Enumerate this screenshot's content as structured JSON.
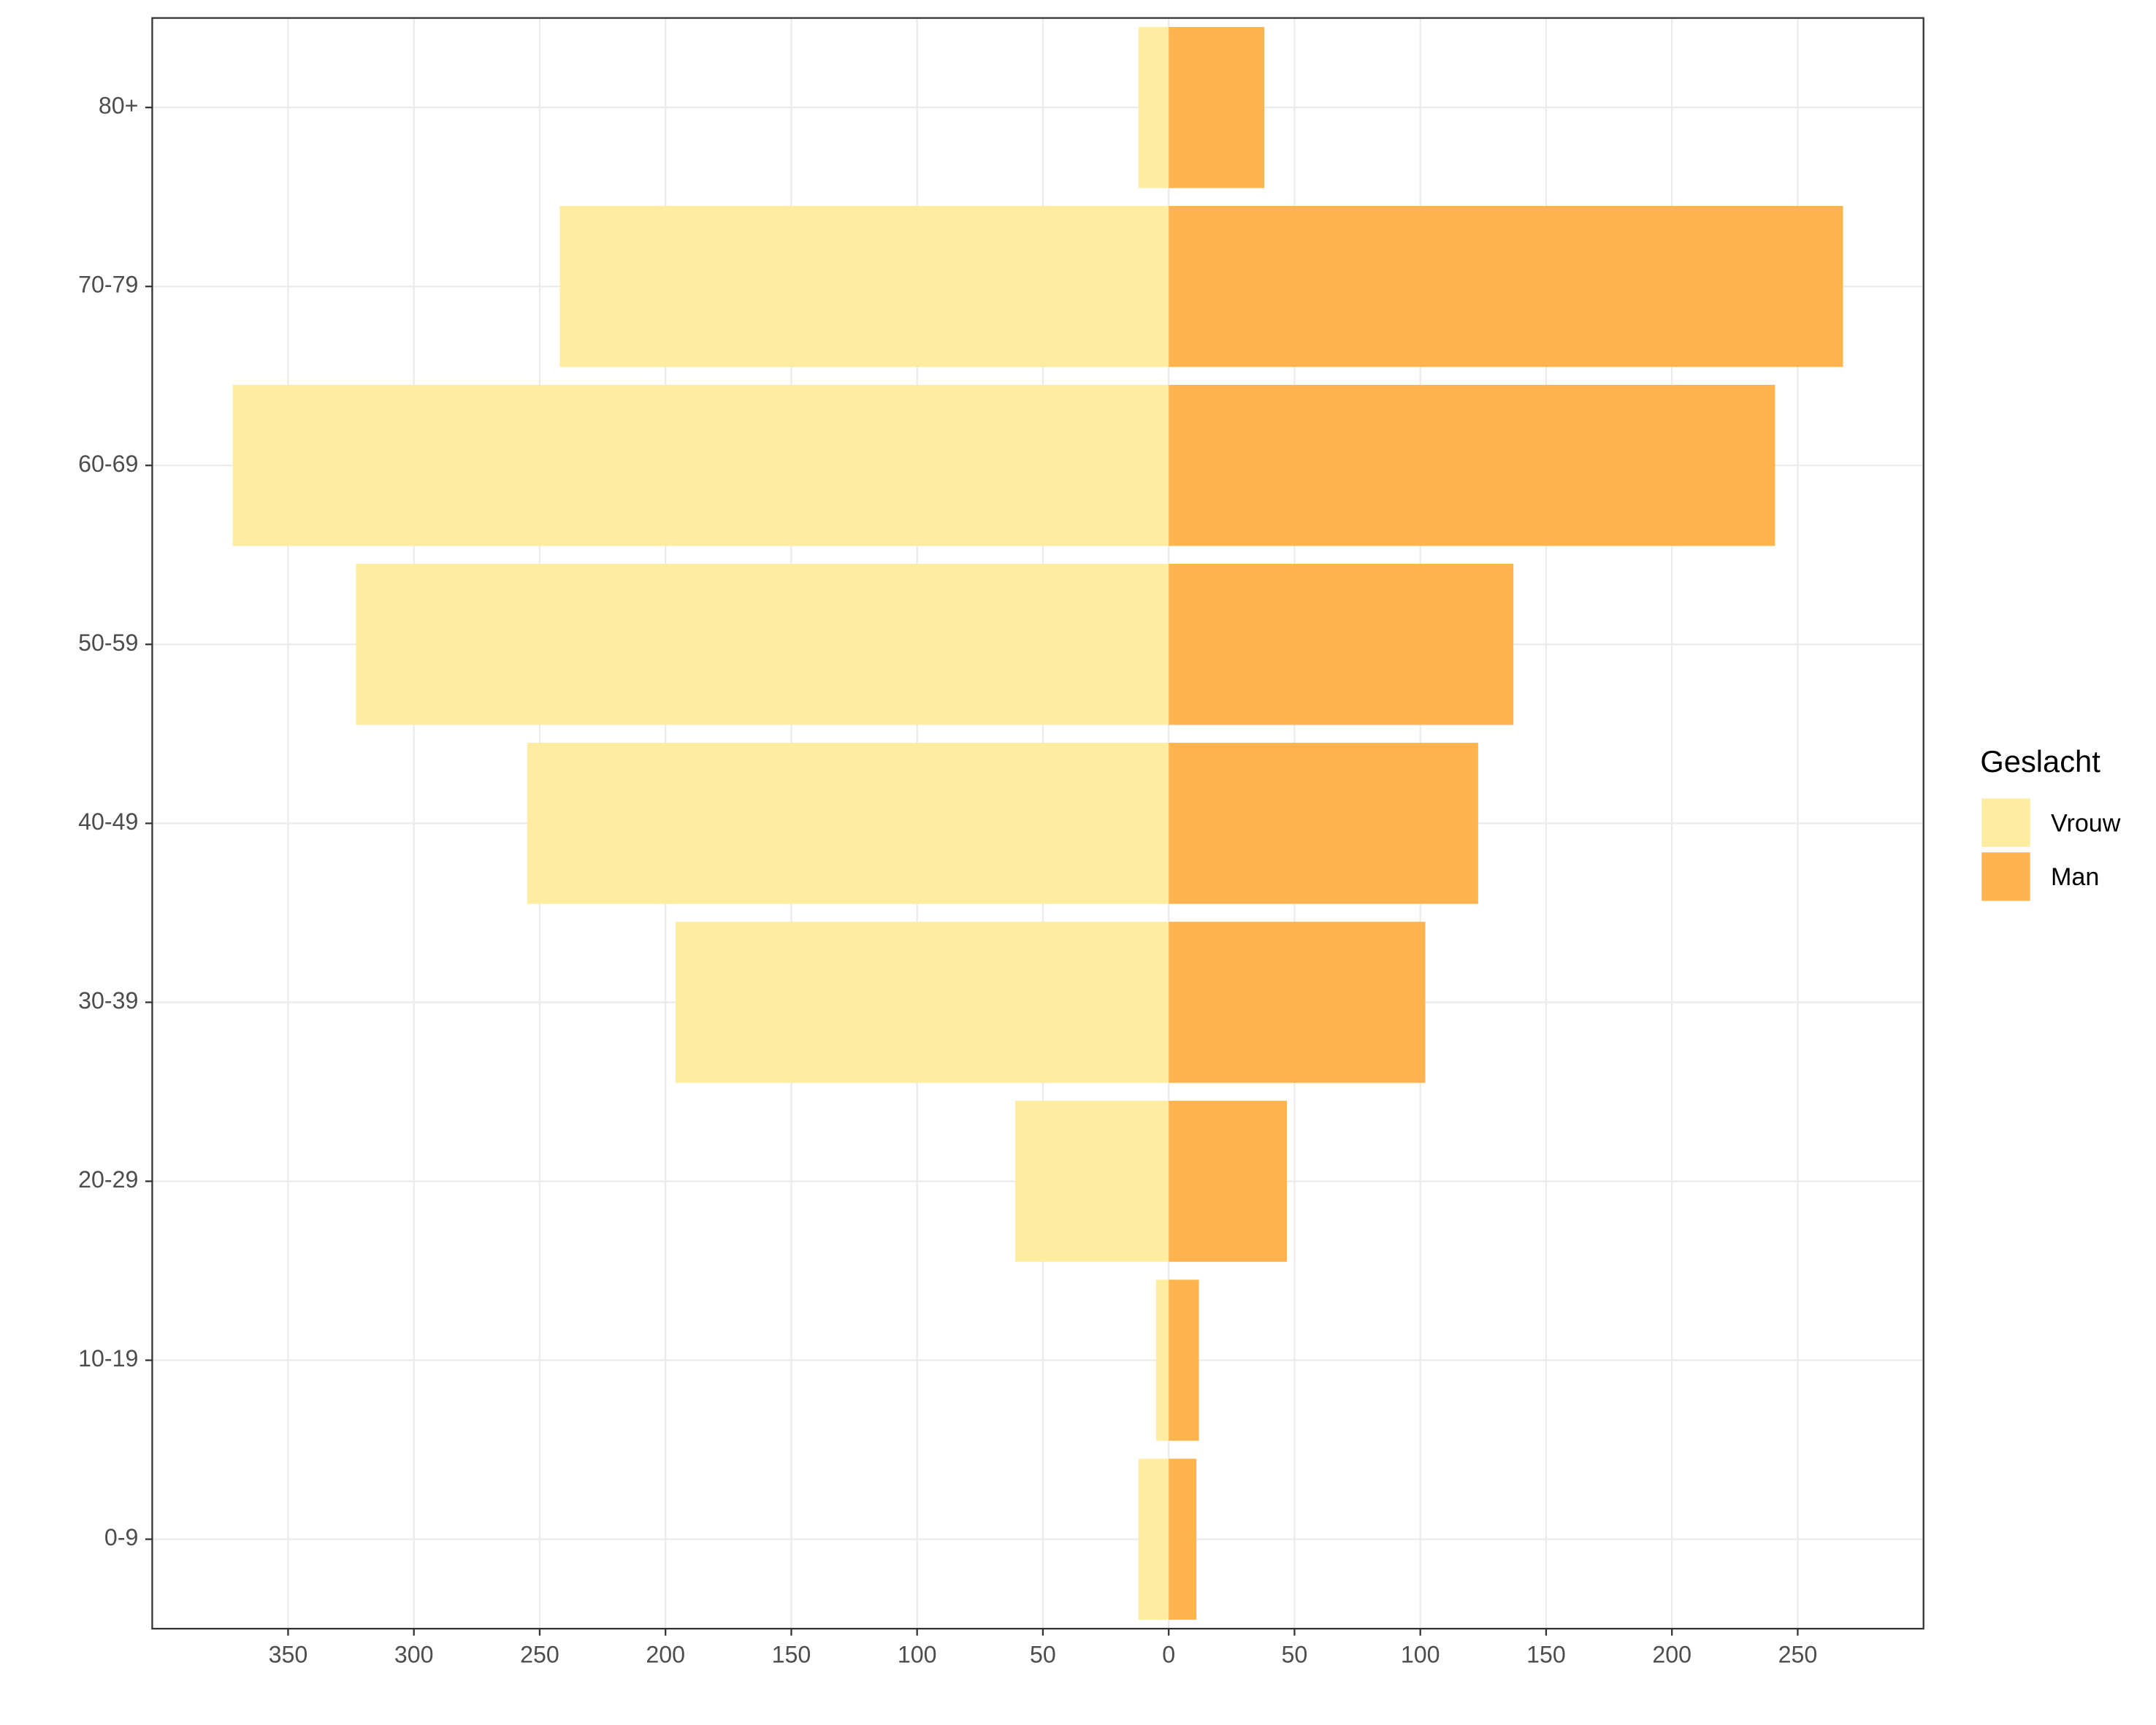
{
  "chart_data": {
    "type": "pyramid",
    "categories": [
      "0-9",
      "10-19",
      "20-29",
      "30-39",
      "40-49",
      "50-59",
      "60-69",
      "70-79",
      "80+"
    ],
    "series": [
      {
        "name": "Vrouw",
        "color": "#feeca0",
        "values": [
          -12,
          -5,
          -61,
          -196,
          -255,
          -323,
          -372,
          -242,
          -12
        ]
      },
      {
        "name": "Man",
        "color": "#fdb44f",
        "values": [
          11,
          12,
          47,
          102,
          123,
          137,
          241,
          268,
          38
        ]
      }
    ],
    "xlim": [
      -404,
      300
    ],
    "xticks": [
      {
        "value": -350,
        "label": "350"
      },
      {
        "value": -300,
        "label": "300"
      },
      {
        "value": -250,
        "label": "250"
      },
      {
        "value": -200,
        "label": "200"
      },
      {
        "value": -150,
        "label": "150"
      },
      {
        "value": -100,
        "label": "100"
      },
      {
        "value": -50,
        "label": "50"
      },
      0,
      50,
      100,
      150,
      200,
      250
    ],
    "legend_title": "Geslacht",
    "legend_position": "right",
    "grid": true
  }
}
